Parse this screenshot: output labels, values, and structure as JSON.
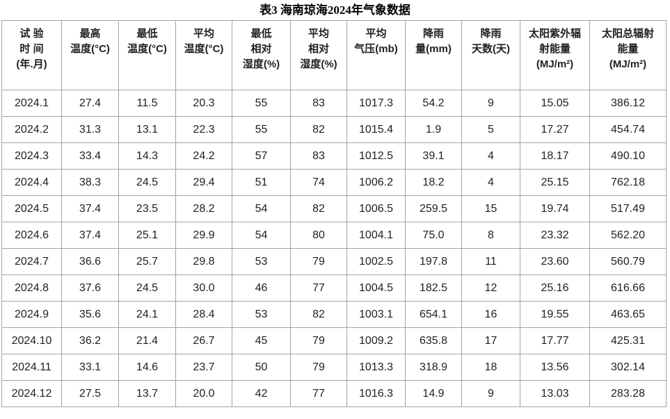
{
  "title": "表3 海南琼海2024年气象数据",
  "table": {
    "headers": [
      {
        "name": "test-time",
        "lines": [
          "试 验",
          "时 间",
          "(年.月)"
        ]
      },
      {
        "name": "max-temp",
        "lines": [
          "最高",
          "温度(°C)"
        ]
      },
      {
        "name": "min-temp",
        "lines": [
          "最低",
          "温度(°C)"
        ]
      },
      {
        "name": "avg-temp",
        "lines": [
          "平均",
          "温度(°C)"
        ]
      },
      {
        "name": "min-rel-humidity",
        "lines": [
          "最低",
          "相对",
          "湿度(%)"
        ]
      },
      {
        "name": "avg-rel-humidity",
        "lines": [
          "平均",
          "相对",
          "湿度(%)"
        ]
      },
      {
        "name": "avg-pressure",
        "lines": [
          "平均",
          "气压(mb)"
        ]
      },
      {
        "name": "rainfall",
        "lines": [
          "降雨",
          "量(mm)"
        ]
      },
      {
        "name": "rain-days",
        "lines": [
          "降雨",
          "天数(天)"
        ]
      },
      {
        "name": "solar-uv-energy",
        "lines": [
          "太阳紫外辐",
          "射能量",
          "(MJ/m²)"
        ]
      },
      {
        "name": "solar-total-energy",
        "lines": [
          "太阳总辐射",
          "能量",
          "(MJ/m²)"
        ]
      }
    ],
    "rows": [
      [
        "2024.1",
        "27.4",
        "11.5",
        "20.3",
        "55",
        "83",
        "1017.3",
        "54.2",
        "9",
        "15.05",
        "386.12"
      ],
      [
        "2024.2",
        "31.3",
        "13.1",
        "22.3",
        "55",
        "82",
        "1015.4",
        "1.9",
        "5",
        "17.27",
        "454.74"
      ],
      [
        "2024.3",
        "33.4",
        "14.3",
        "24.2",
        "57",
        "83",
        "1012.5",
        "39.1",
        "4",
        "18.17",
        "490.10"
      ],
      [
        "2024.4",
        "38.3",
        "24.5",
        "29.4",
        "51",
        "74",
        "1006.2",
        "18.2",
        "4",
        "25.15",
        "762.18"
      ],
      [
        "2024.5",
        "37.4",
        "23.5",
        "28.2",
        "54",
        "82",
        "1006.5",
        "259.5",
        "15",
        "19.74",
        "517.49"
      ],
      [
        "2024.6",
        "37.4",
        "25.1",
        "29.9",
        "54",
        "80",
        "1004.1",
        "75.0",
        "8",
        "23.32",
        "562.20"
      ],
      [
        "2024.7",
        "36.6",
        "25.7",
        "29.8",
        "53",
        "79",
        "1002.5",
        "197.8",
        "11",
        "23.60",
        "560.79"
      ],
      [
        "2024.8",
        "37.6",
        "24.5",
        "30.0",
        "46",
        "77",
        "1004.5",
        "182.5",
        "12",
        "25.16",
        "616.66"
      ],
      [
        "2024.9",
        "35.6",
        "24.1",
        "28.4",
        "53",
        "82",
        "1003.1",
        "654.1",
        "16",
        "19.55",
        "463.65"
      ],
      [
        "2024.10",
        "36.2",
        "21.4",
        "26.7",
        "45",
        "79",
        "1009.2",
        "635.8",
        "17",
        "17.77",
        "425.31"
      ],
      [
        "2024.11",
        "33.1",
        "14.6",
        "23.7",
        "50",
        "79",
        "1013.3",
        "318.9",
        "18",
        "13.56",
        "302.14"
      ],
      [
        "2024.12",
        "27.5",
        "13.7",
        "20.0",
        "42",
        "77",
        "1016.3",
        "14.9",
        "9",
        "13.03",
        "283.28"
      ]
    ]
  },
  "colors": {
    "border": "#a3a3a3",
    "text": "#1f1f1f",
    "title_text": "#000000",
    "background": "#ffffff"
  }
}
